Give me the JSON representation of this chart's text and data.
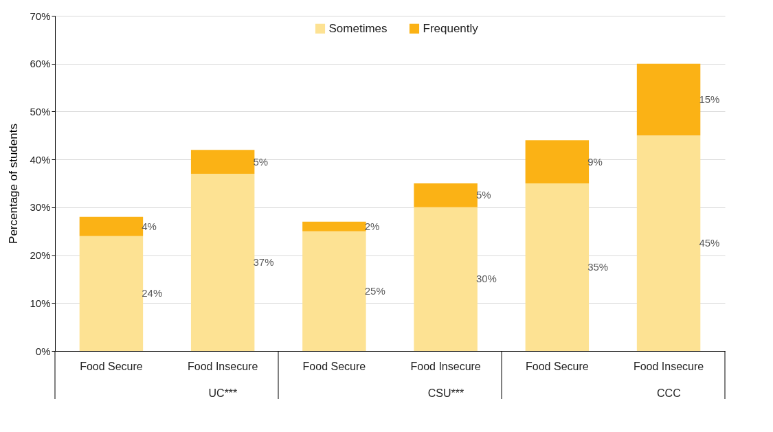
{
  "chart_data": {
    "type": "bar",
    "stacked": true,
    "ylabel": "Percentage of students",
    "categories": [
      "Food Secure",
      "Food Insecure",
      "Food Secure",
      "Food Insecure",
      "Food Secure",
      "Food Insecure"
    ],
    "annotations": [
      "UC***",
      "CSU***",
      "CCC"
    ],
    "series": [
      {
        "name": "Sometimes",
        "color": "#fde293",
        "values": [
          24,
          37,
          25,
          30,
          35,
          45
        ],
        "value_labels": [
          "24%",
          "37%",
          "25%",
          "30%",
          "35%",
          "45%"
        ]
      },
      {
        "name": "Frequently",
        "color": "#fbb215",
        "values": [
          4,
          5,
          2,
          5,
          9,
          15
        ],
        "value_labels": [
          "4%",
          "5%",
          "2%",
          "5%",
          "9%",
          "15%"
        ]
      }
    ],
    "ylim": [
      0,
      70
    ],
    "yticks": [
      {
        "value": 0,
        "label": "0%"
      },
      {
        "value": 10,
        "label": "10%"
      },
      {
        "value": 20,
        "label": "20%"
      },
      {
        "value": 30,
        "label": "30%"
      },
      {
        "value": 40,
        "label": "40%"
      },
      {
        "value": 50,
        "label": "50%"
      },
      {
        "value": 60,
        "label": "60%"
      },
      {
        "value": 70,
        "label": "70%"
      }
    ],
    "grid": "y",
    "legend": "top"
  }
}
